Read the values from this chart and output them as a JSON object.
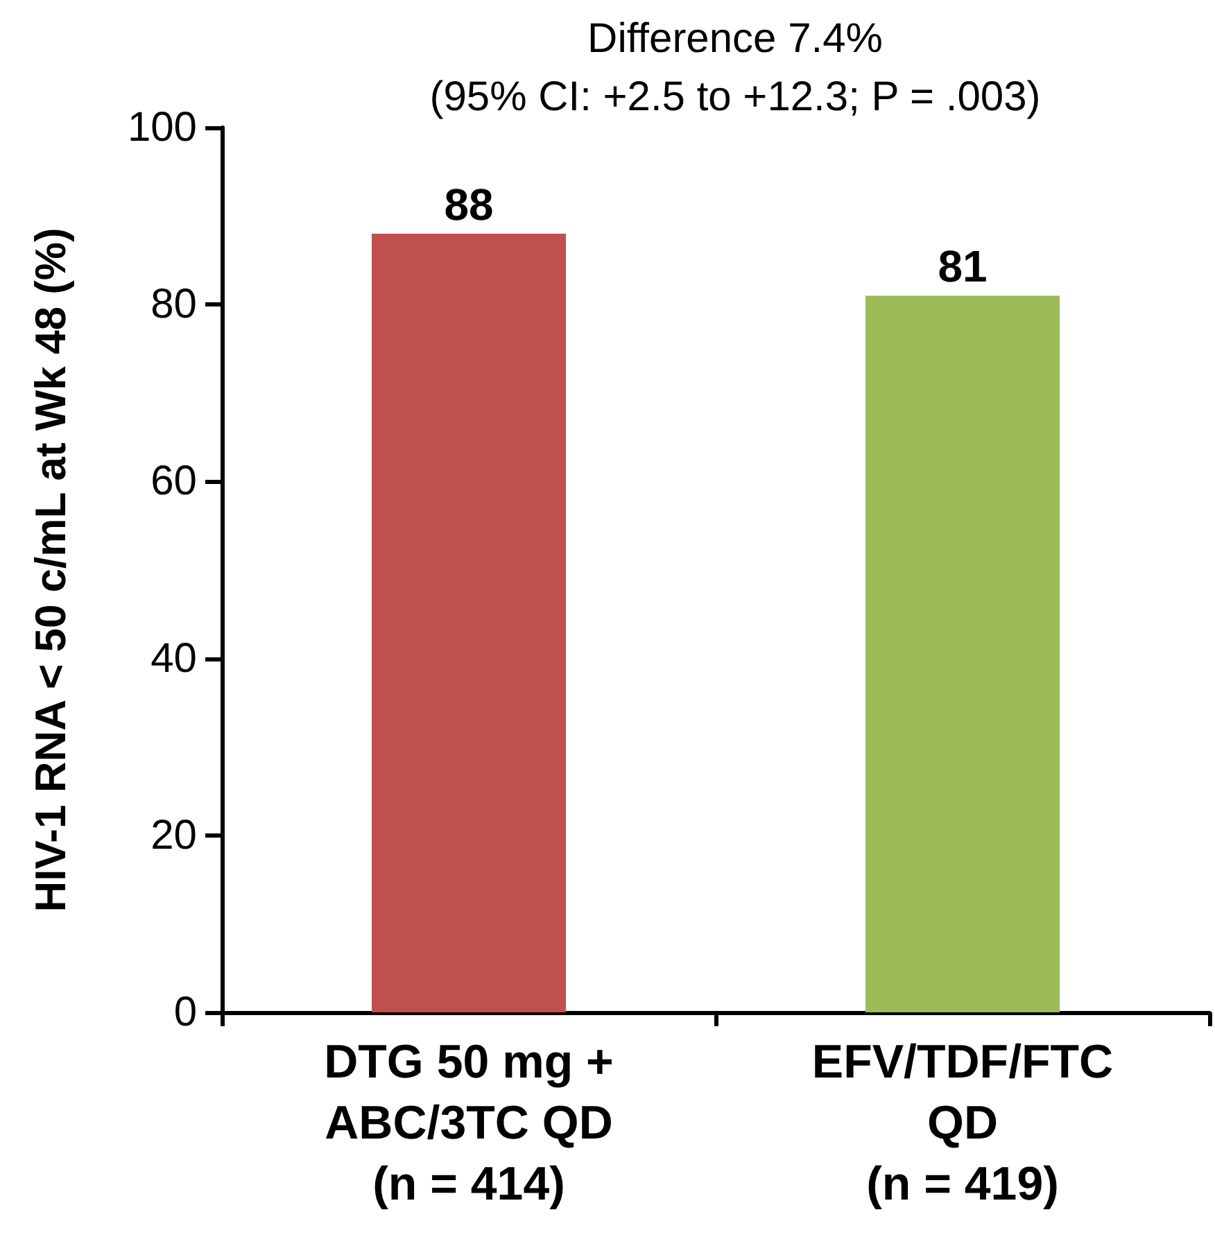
{
  "chart_data": {
    "type": "bar",
    "title": "Difference 7.4%",
    "subtitle": "(95% CI: +2.5 to +12.3; P = .003)",
    "ylabel": "HIV-1 RNA < 50 c/mL at Wk 48 (%)",
    "categories": [
      "DTG 50 mg +\nABC/3TC QD\n(n = 414)",
      "EFV/TDF/FTC\nQD\n(n = 419)"
    ],
    "values": [
      88,
      81
    ],
    "colors": [
      "#c0504d",
      "#9bbb59"
    ],
    "ylim": [
      0,
      100
    ],
    "yticks": [
      0,
      20,
      40,
      60,
      80,
      100
    ],
    "grid": false,
    "data_labels": true
  }
}
